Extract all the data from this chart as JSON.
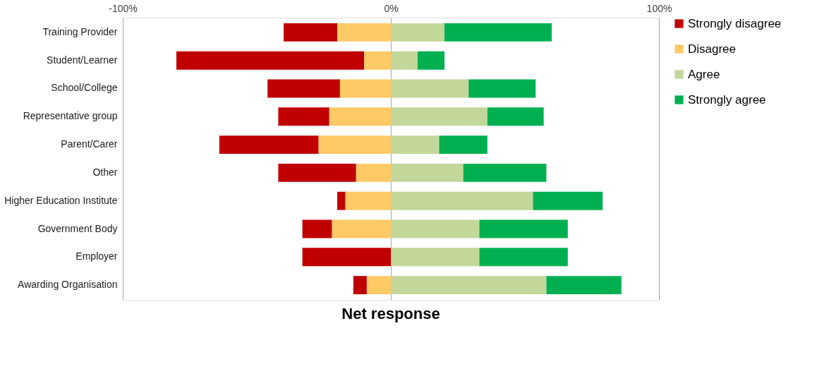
{
  "chart_data": {
    "type": "bar",
    "orientation": "horizontal",
    "stacked": true,
    "xlabel": "Net response",
    "categories": [
      "Training Provider",
      "Student/Learner",
      "School/College",
      "Representative group",
      "Parent/Carer",
      "Other",
      "Higher Education Institute",
      "Government Body",
      "Employer",
      "Awarding Organisation"
    ],
    "series": [
      {
        "name": "Disagree",
        "color": "#ffc966",
        "values": [
          -20,
          -10,
          -19,
          -23,
          -27,
          -13,
          -17,
          -22,
          0,
          -9
        ]
      },
      {
        "name": "Strongly disagree",
        "color": "#c00000",
        "values": [
          -20,
          -70,
          -27,
          -19,
          -37,
          -29,
          -3,
          -11,
          -33,
          -5
        ]
      },
      {
        "name": "Agree",
        "color": "#c4d79b",
        "values": [
          20,
          10,
          29,
          36,
          18,
          27,
          53,
          33,
          33,
          58
        ]
      },
      {
        "name": "Strongly agree",
        "color": "#00b050",
        "values": [
          40,
          10,
          25,
          21,
          18,
          31,
          26,
          33,
          33,
          28
        ]
      }
    ],
    "xlim": [
      -100,
      100
    ],
    "xticks": [
      {
        "value": -100,
        "label": "-100%"
      },
      {
        "value": 0,
        "label": "0%"
      },
      {
        "value": 100,
        "label": "100%"
      }
    ],
    "grid": "x",
    "legend": "right"
  }
}
